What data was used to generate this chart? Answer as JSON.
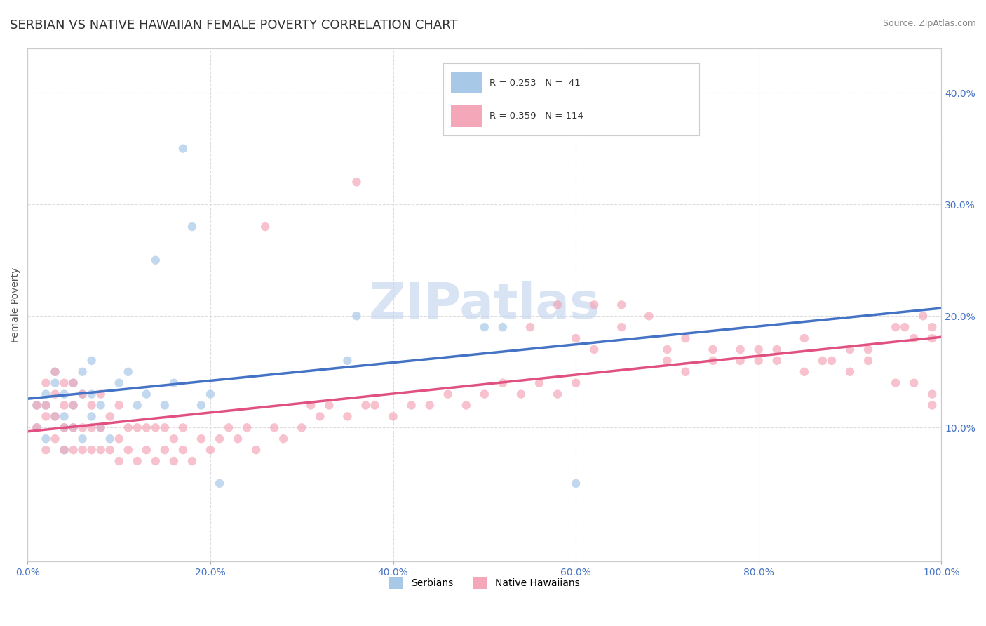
{
  "title": "SERBIAN VS NATIVE HAWAIIAN FEMALE POVERTY CORRELATION CHART",
  "source": "Source: ZipAtlas.com",
  "xlabel": "",
  "ylabel": "Female Poverty",
  "xlim": [
    0,
    1.0
  ],
  "ylim": [
    -0.02,
    0.44
  ],
  "yticks": [
    0.1,
    0.2,
    0.3,
    0.4
  ],
  "xticks": [
    0.0,
    0.2,
    0.4,
    0.6,
    0.8,
    1.0
  ],
  "series": [
    {
      "name": "Serbians",
      "R": 0.253,
      "N": 41,
      "color": "#a8c8e8",
      "line_color": "#4472c4",
      "scatter_alpha": 0.7,
      "marker_size": 80
    },
    {
      "name": "Native Hawaiians",
      "R": 0.359,
      "N": 114,
      "color": "#f4a7b9",
      "line_color": "#e05080",
      "scatter_alpha": 0.7,
      "marker_size": 80
    }
  ],
  "watermark": "ZIPatlas",
  "watermark_color": "#c8d8f0",
  "background_color": "#ffffff",
  "grid_color": "#dddddd",
  "title_fontsize": 13,
  "axis_label_fontsize": 10,
  "tick_label_color": "#4472c4",
  "seed": 42,
  "serbian_x": [
    0.01,
    0.01,
    0.02,
    0.02,
    0.02,
    0.03,
    0.03,
    0.03,
    0.04,
    0.04,
    0.04,
    0.04,
    0.05,
    0.05,
    0.05,
    0.06,
    0.06,
    0.06,
    0.07,
    0.07,
    0.07,
    0.08,
    0.08,
    0.09,
    0.1,
    0.11,
    0.12,
    0.13,
    0.14,
    0.15,
    0.16,
    0.17,
    0.18,
    0.19,
    0.2,
    0.21,
    0.35,
    0.36,
    0.5,
    0.52,
    0.6
  ],
  "serbian_y": [
    0.12,
    0.1,
    0.09,
    0.13,
    0.12,
    0.11,
    0.14,
    0.15,
    0.08,
    0.1,
    0.11,
    0.13,
    0.12,
    0.14,
    0.1,
    0.09,
    0.13,
    0.15,
    0.11,
    0.13,
    0.16,
    0.12,
    0.1,
    0.09,
    0.14,
    0.15,
    0.12,
    0.13,
    0.25,
    0.12,
    0.14,
    0.35,
    0.28,
    0.12,
    0.13,
    0.05,
    0.16,
    0.2,
    0.19,
    0.19,
    0.05
  ],
  "native_hawaiian_x": [
    0.01,
    0.01,
    0.02,
    0.02,
    0.02,
    0.02,
    0.03,
    0.03,
    0.03,
    0.03,
    0.04,
    0.04,
    0.04,
    0.04,
    0.05,
    0.05,
    0.05,
    0.05,
    0.06,
    0.06,
    0.06,
    0.07,
    0.07,
    0.07,
    0.08,
    0.08,
    0.08,
    0.09,
    0.09,
    0.1,
    0.1,
    0.1,
    0.11,
    0.11,
    0.12,
    0.12,
    0.13,
    0.13,
    0.14,
    0.14,
    0.15,
    0.15,
    0.16,
    0.16,
    0.17,
    0.17,
    0.18,
    0.19,
    0.2,
    0.21,
    0.22,
    0.23,
    0.24,
    0.25,
    0.26,
    0.27,
    0.28,
    0.3,
    0.31,
    0.32,
    0.33,
    0.35,
    0.36,
    0.37,
    0.38,
    0.4,
    0.42,
    0.44,
    0.46,
    0.48,
    0.5,
    0.52,
    0.54,
    0.56,
    0.58,
    0.6,
    0.62,
    0.65,
    0.7,
    0.72,
    0.75,
    0.78,
    0.8,
    0.82,
    0.85,
    0.87,
    0.9,
    0.92,
    0.95,
    0.96,
    0.97,
    0.98,
    0.99,
    0.99,
    0.55,
    0.58,
    0.6,
    0.62,
    0.65,
    0.68,
    0.7,
    0.72,
    0.75,
    0.78,
    0.8,
    0.82,
    0.85,
    0.88,
    0.9,
    0.92,
    0.95,
    0.97,
    0.99,
    0.99
  ],
  "native_hawaiian_y": [
    0.1,
    0.12,
    0.08,
    0.11,
    0.12,
    0.14,
    0.09,
    0.11,
    0.13,
    0.15,
    0.08,
    0.1,
    0.12,
    0.14,
    0.08,
    0.1,
    0.12,
    0.14,
    0.08,
    0.1,
    0.13,
    0.08,
    0.1,
    0.12,
    0.08,
    0.1,
    0.13,
    0.08,
    0.11,
    0.07,
    0.09,
    0.12,
    0.08,
    0.1,
    0.07,
    0.1,
    0.08,
    0.1,
    0.07,
    0.1,
    0.08,
    0.1,
    0.07,
    0.09,
    0.08,
    0.1,
    0.07,
    0.09,
    0.08,
    0.09,
    0.1,
    0.09,
    0.1,
    0.08,
    0.28,
    0.1,
    0.09,
    0.1,
    0.12,
    0.11,
    0.12,
    0.11,
    0.32,
    0.12,
    0.12,
    0.11,
    0.12,
    0.12,
    0.13,
    0.12,
    0.13,
    0.14,
    0.13,
    0.14,
    0.13,
    0.14,
    0.21,
    0.21,
    0.16,
    0.15,
    0.17,
    0.16,
    0.17,
    0.16,
    0.18,
    0.16,
    0.17,
    0.17,
    0.19,
    0.19,
    0.18,
    0.2,
    0.18,
    0.19,
    0.19,
    0.21,
    0.18,
    0.17,
    0.19,
    0.2,
    0.17,
    0.18,
    0.16,
    0.17,
    0.16,
    0.17,
    0.15,
    0.16,
    0.15,
    0.16,
    0.14,
    0.14,
    0.13,
    0.12
  ]
}
